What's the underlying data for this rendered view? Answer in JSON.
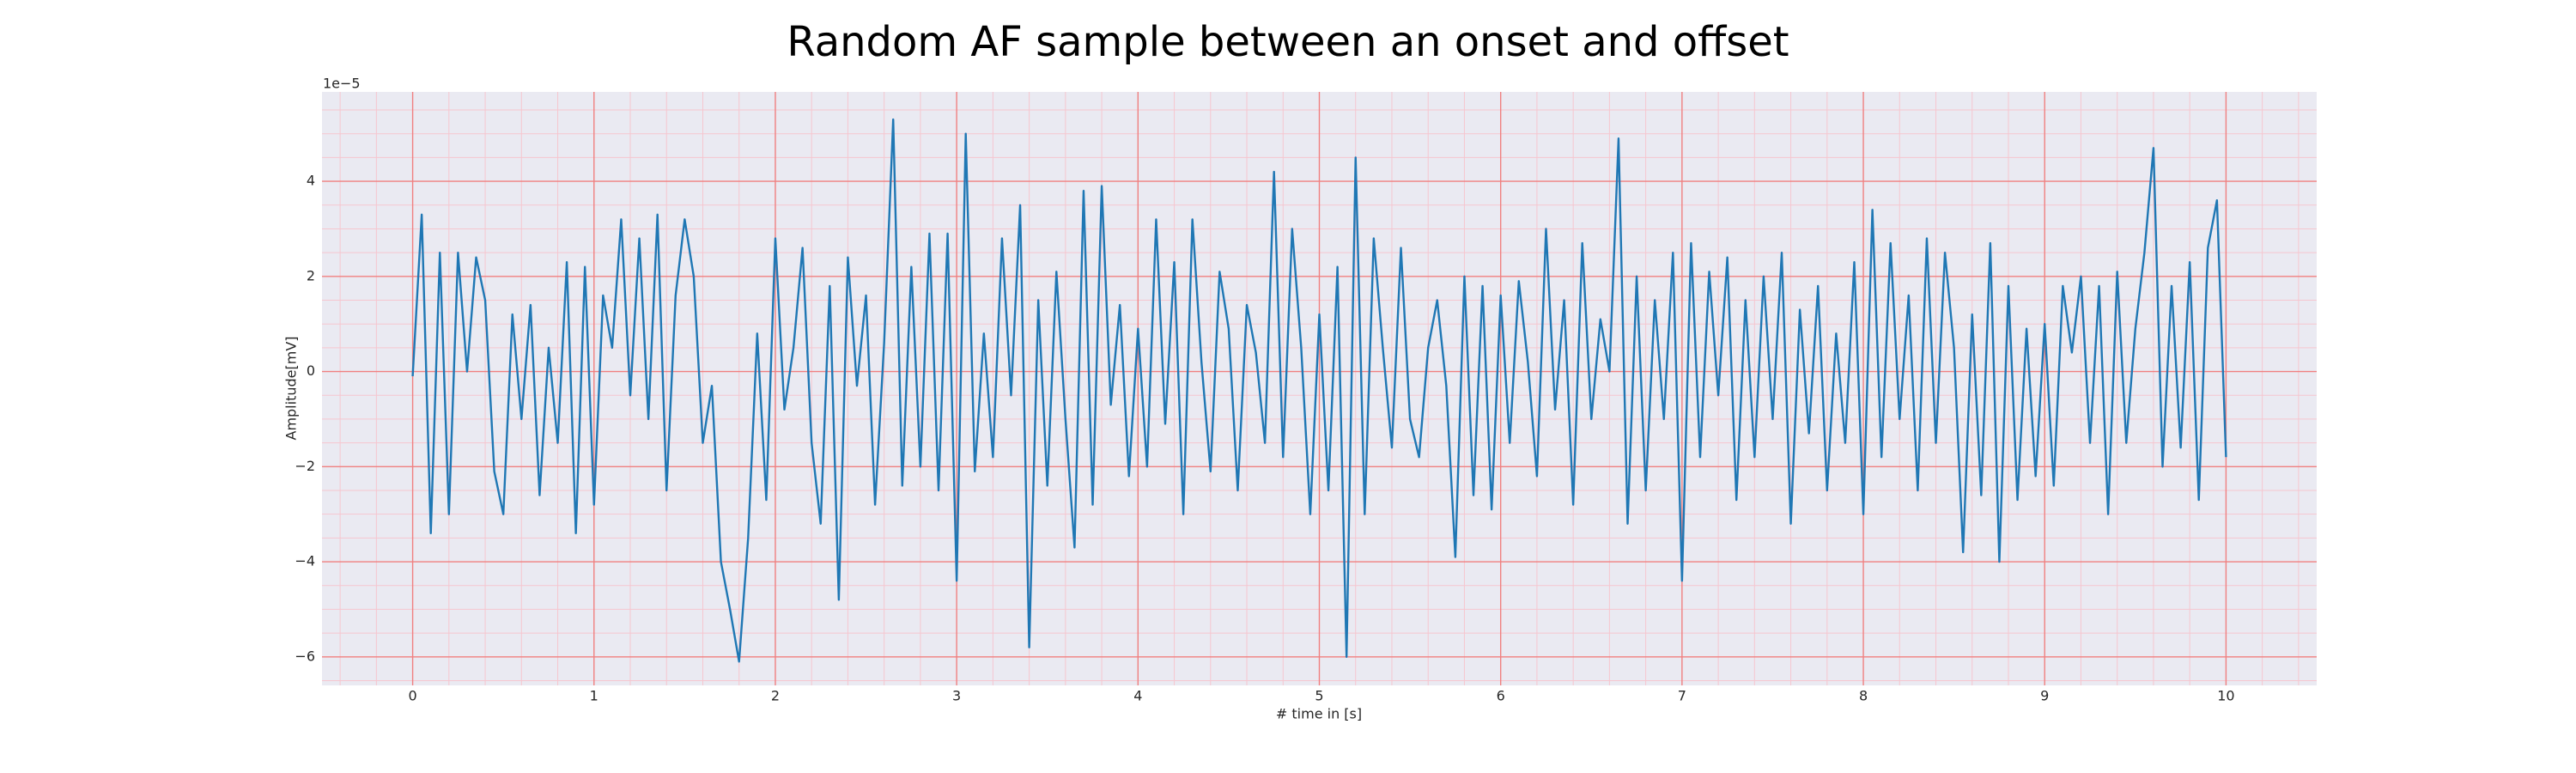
{
  "chart_data": {
    "type": "line",
    "title": "Random AF sample between an onset and offset",
    "xlabel": "# time in [s]",
    "ylabel": "Amplitude[mV]",
    "offset_text": "1e−5",
    "color": "#1f77b4",
    "background": "#eaeaf2",
    "grid": true,
    "grid_color": "#f08080",
    "minor_grid": true,
    "minor_grid_color": "#f6c6cf",
    "xlim": [
      -0.5,
      10.5
    ],
    "xticks": [
      0,
      1,
      2,
      3,
      4,
      5,
      6,
      7,
      8,
      9,
      10
    ],
    "ylim": [
      -6.6,
      5.88
    ],
    "yticks": [
      {
        "value": -6,
        "label": "−6"
      },
      {
        "value": -4,
        "label": "−4"
      },
      {
        "value": -2,
        "label": "−2"
      },
      0,
      2,
      4
    ],
    "x": [
      0,
      0.05,
      0.1,
      0.15,
      0.2,
      0.25,
      0.3,
      0.35,
      0.4,
      0.45,
      0.5,
      0.55,
      0.6,
      0.65,
      0.7,
      0.75,
      0.8,
      0.85,
      0.9,
      0.95,
      1,
      1.05,
      1.1,
      1.15,
      1.2,
      1.25,
      1.3,
      1.35,
      1.4,
      1.45,
      1.5,
      1.55,
      1.6,
      1.65,
      1.7,
      1.75,
      1.8,
      1.85,
      1.9,
      1.95,
      2,
      2.05,
      2.1,
      2.15,
      2.2,
      2.25,
      2.3,
      2.35,
      2.4,
      2.45,
      2.5,
      2.55,
      2.6,
      2.65,
      2.7,
      2.75,
      2.8,
      2.85,
      2.9,
      2.95,
      3,
      3.05,
      3.1,
      3.15,
      3.2,
      3.25,
      3.3,
      3.35,
      3.4,
      3.45,
      3.5,
      3.55,
      3.6,
      3.65,
      3.7,
      3.75,
      3.8,
      3.85,
      3.9,
      3.95,
      4,
      4.05,
      4.1,
      4.15,
      4.2,
      4.25,
      4.3,
      4.35,
      4.4,
      4.45,
      4.5,
      4.55,
      4.6,
      4.65,
      4.7,
      4.75,
      4.8,
      4.85,
      4.9,
      4.95,
      5,
      5.05,
      5.1,
      5.15,
      5.2,
      5.25,
      5.3,
      5.35,
      5.4,
      5.45,
      5.5,
      5.55,
      5.6,
      5.65,
      5.7,
      5.75,
      5.8,
      5.85,
      5.9,
      5.95,
      6,
      6.05,
      6.1,
      6.15,
      6.2,
      6.25,
      6.3,
      6.35,
      6.4,
      6.45,
      6.5,
      6.55,
      6.6,
      6.65,
      6.7,
      6.75,
      6.8,
      6.85,
      6.9,
      6.95,
      7,
      7.05,
      7.1,
      7.15,
      7.2,
      7.25,
      7.3,
      7.35,
      7.4,
      7.45,
      7.5,
      7.55,
      7.6,
      7.65,
      7.7,
      7.75,
      7.8,
      7.85,
      7.9,
      7.95,
      8,
      8.05,
      8.1,
      8.15,
      8.2,
      8.25,
      8.3,
      8.35,
      8.4,
      8.45,
      8.5,
      8.55,
      8.6,
      8.65,
      8.7,
      8.75,
      8.8,
      8.85,
      8.9,
      8.95,
      9,
      9.05,
      9.1,
      9.15,
      9.2,
      9.25,
      9.3,
      9.35,
      9.4,
      9.45,
      9.5,
      9.55,
      9.6,
      9.65,
      9.7,
      9.75,
      9.8,
      9.85,
      9.9,
      9.95,
      10
    ],
    "values": [
      -0.1,
      3.3,
      -3.4,
      2.5,
      -3.0,
      2.5,
      0.0,
      2.4,
      1.5,
      -2.1,
      -3.0,
      1.2,
      -1.0,
      1.4,
      -2.6,
      0.5,
      -1.5,
      2.3,
      -3.4,
      2.2,
      -2.8,
      1.6,
      0.5,
      3.2,
      -0.5,
      2.8,
      -1.0,
      3.3,
      -2.5,
      1.6,
      3.2,
      2.0,
      -1.5,
      -0.3,
      -4.0,
      -5.0,
      -6.1,
      -3.5,
      0.8,
      -2.7,
      2.8,
      -0.8,
      0.5,
      2.6,
      -1.5,
      -3.2,
      1.8,
      -4.8,
      2.4,
      -0.3,
      1.6,
      -2.8,
      0.6,
      5.3,
      -2.4,
      2.2,
      -2.0,
      2.9,
      -2.5,
      2.9,
      -4.4,
      5.0,
      -2.1,
      0.8,
      -1.8,
      2.8,
      -0.5,
      3.5,
      -5.8,
      1.5,
      -2.4,
      2.1,
      -1.0,
      -3.7,
      3.8,
      -2.8,
      3.9,
      -0.7,
      1.4,
      -2.2,
      0.9,
      -2.0,
      3.2,
      -1.1,
      2.3,
      -3.0,
      3.2,
      0.2,
      -2.1,
      2.1,
      0.9,
      -2.5,
      1.4,
      0.4,
      -1.5,
      4.2,
      -1.8,
      3.0,
      0.5,
      -3.0,
      1.2,
      -2.5,
      2.2,
      -6.0,
      4.5,
      -3.0,
      2.8,
      0.5,
      -1.6,
      2.6,
      -1.0,
      -1.8,
      0.5,
      1.5,
      -0.3,
      -3.9,
      2.0,
      -2.6,
      1.8,
      -2.9,
      1.6,
      -1.5,
      1.9,
      0.2,
      -2.2,
      3.0,
      -0.8,
      1.5,
      -2.8,
      2.7,
      -1.0,
      1.1,
      0.0,
      4.9,
      -3.2,
      2.0,
      -2.5,
      1.5,
      -1.0,
      2.5,
      -4.4,
      2.7,
      -1.8,
      2.1,
      -0.5,
      2.4,
      -2.7,
      1.5,
      -1.8,
      2.0,
      -1.0,
      2.5,
      -3.2,
      1.3,
      -1.3,
      1.8,
      -2.5,
      0.8,
      -1.5,
      2.3,
      -3.0,
      3.4,
      -1.8,
      2.7,
      -1.0,
      1.6,
      -2.5,
      2.8,
      -1.5,
      2.5,
      0.5,
      -3.8,
      1.2,
      -2.6,
      2.7,
      -4.0,
      1.8,
      -2.7,
      0.9,
      -2.2,
      1.0,
      -2.4,
      1.8,
      0.4,
      2.0,
      -1.5,
      1.8,
      -3.0,
      2.1,
      -1.5,
      0.9,
      2.5,
      4.7,
      -2.0,
      1.8,
      -1.6,
      2.3,
      -2.7,
      2.6,
      3.6,
      -1.8
    ]
  }
}
